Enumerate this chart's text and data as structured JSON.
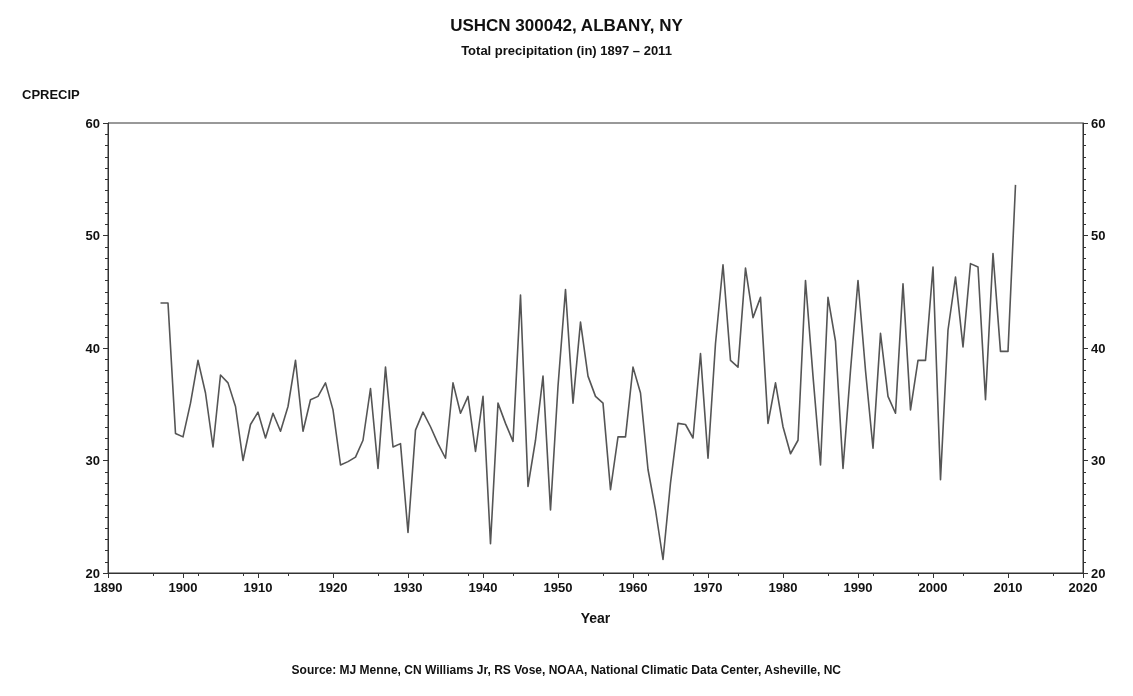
{
  "chart_data": {
    "type": "line",
    "title": "USHCN 300042, ALBANY, NY",
    "subtitle": "Total precipitation (in) 1897 – 2011",
    "xlabel": "Year",
    "ylabel": "CPRECIP",
    "annotations": [
      "Source: MJ Menne, CN Williams Jr, RS Vose, NOAA, National Climatic Data Center, Asheville, NC"
    ],
    "x": [
      1897,
      1898,
      1899,
      1900,
      1901,
      1902,
      1903,
      1904,
      1905,
      1906,
      1907,
      1908,
      1909,
      1910,
      1911,
      1912,
      1913,
      1914,
      1915,
      1916,
      1917,
      1918,
      1919,
      1920,
      1921,
      1922,
      1923,
      1924,
      1925,
      1926,
      1927,
      1928,
      1929,
      1930,
      1931,
      1932,
      1933,
      1934,
      1935,
      1936,
      1937,
      1938,
      1939,
      1940,
      1941,
      1942,
      1943,
      1944,
      1945,
      1946,
      1947,
      1948,
      1949,
      1950,
      1951,
      1952,
      1953,
      1954,
      1955,
      1956,
      1957,
      1958,
      1959,
      1960,
      1961,
      1962,
      1963,
      1964,
      1965,
      1966,
      1967,
      1968,
      1969,
      1970,
      1971,
      1972,
      1973,
      1974,
      1975,
      1976,
      1977,
      1978,
      1979,
      1980,
      1981,
      1982,
      1983,
      1984,
      1985,
      1986,
      1987,
      1988,
      1989,
      1990,
      1991,
      1992,
      1993,
      1994,
      1995,
      1996,
      1997,
      1998,
      1999,
      2000,
      2001,
      2002,
      2003,
      2004,
      2005,
      2006,
      2007,
      2008,
      2009,
      2010,
      2011
    ],
    "series": [
      {
        "color": "#555555",
        "values": [
          44.0,
          44.0,
          32.4,
          32.1,
          35.1,
          38.9,
          36.0,
          31.2,
          37.6,
          36.9,
          34.8,
          30.0,
          33.2,
          34.3,
          32.0,
          34.2,
          32.6,
          34.8,
          38.9,
          32.6,
          35.4,
          35.7,
          36.9,
          34.5,
          29.6,
          29.9,
          30.3,
          31.8,
          36.4,
          29.3,
          38.3,
          31.2,
          31.5,
          23.6,
          32.7,
          34.3,
          33.0,
          31.5,
          30.2,
          36.9,
          34.2,
          35.7,
          30.8,
          35.7,
          22.6,
          35.1,
          33.3,
          31.7,
          44.7,
          27.7,
          31.8,
          37.5,
          25.6,
          36.6,
          45.2,
          35.1,
          42.3,
          37.5,
          35.7,
          35.1,
          27.4,
          32.1,
          32.1,
          38.3,
          36.0,
          29.2,
          25.6,
          21.2,
          28.0,
          33.3,
          33.2,
          32.0,
          39.5,
          30.2,
          40.4,
          47.4,
          38.9,
          38.3,
          47.1,
          42.7,
          44.5,
          33.3,
          36.9,
          33.0,
          30.6,
          31.8,
          46.0,
          37.5,
          29.6,
          44.5,
          40.6,
          29.3,
          38.0,
          46.0,
          38.0,
          31.1,
          41.3,
          35.7,
          34.2,
          45.7,
          34.5,
          38.9,
          38.9,
          47.2,
          28.3,
          41.6,
          46.3,
          40.1,
          47.5,
          47.2,
          35.4,
          48.4,
          39.7,
          39.7,
          54.5
        ]
      }
    ],
    "xlim": [
      1890,
      2020
    ],
    "xticks": [
      1890,
      1900,
      1910,
      1920,
      1930,
      1940,
      1950,
      1960,
      1970,
      1980,
      1990,
      2000,
      2010,
      2020
    ],
    "ylim": [
      20,
      60
    ],
    "yticks": [
      20,
      30,
      40,
      50,
      60
    ],
    "y2lim": [
      20,
      60
    ],
    "y2ticks": [
      20,
      30,
      40,
      50,
      60
    ],
    "marker": "none",
    "line_style": "solid"
  }
}
